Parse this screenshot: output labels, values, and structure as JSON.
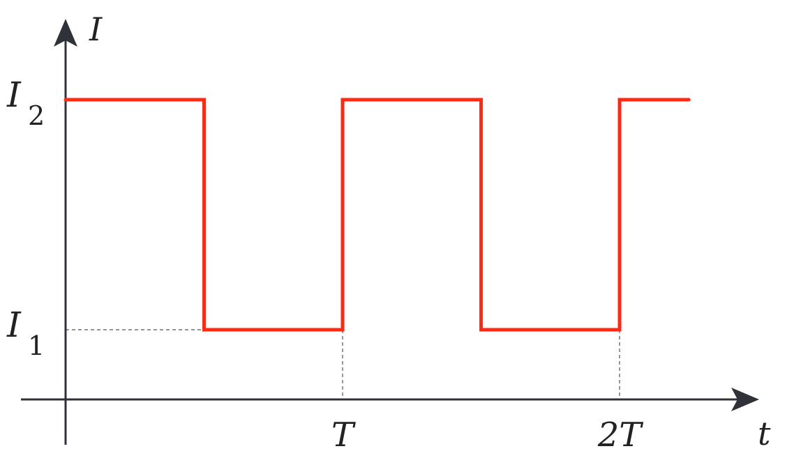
{
  "chart_data": {
    "type": "line",
    "step": true,
    "xlabel": "t",
    "ylabel": "I",
    "x_ticks": [
      {
        "value": 1,
        "label": "T"
      },
      {
        "value": 2,
        "label": "2T"
      }
    ],
    "y_ticks": [
      {
        "value": 1,
        "symbol": "I",
        "subscript": "1"
      },
      {
        "value": 2,
        "symbol": "I",
        "subscript": "2"
      }
    ],
    "series": [
      {
        "color": "#ff2a14",
        "points": [
          [
            0,
            2
          ],
          [
            0.5,
            2
          ],
          [
            0.5,
            1
          ],
          [
            1,
            1
          ],
          [
            1,
            2
          ],
          [
            1.5,
            2
          ],
          [
            1.5,
            1
          ],
          [
            2,
            1
          ],
          [
            2,
            2
          ],
          [
            2.25,
            2
          ]
        ]
      }
    ],
    "guides": {
      "dashed": true,
      "color": "#555555"
    },
    "axis_color": "#2f3238",
    "grid": false,
    "legend": false
  }
}
